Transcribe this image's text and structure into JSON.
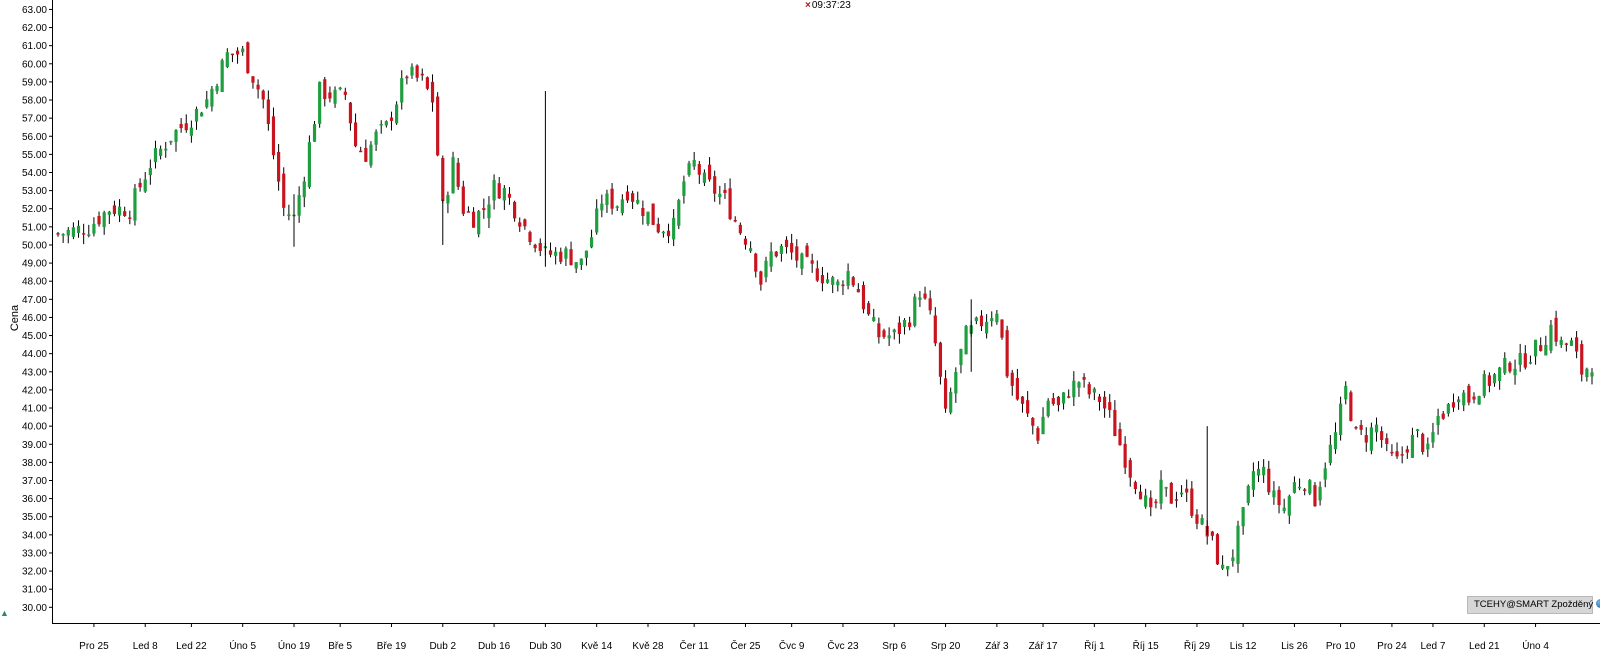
{
  "header": {
    "timestamp": "09:37:23",
    "timestamp_marker": "×"
  },
  "badge": {
    "label": "TCEHY@SMART Zpožděný"
  },
  "colors": {
    "up": "#1e9e3e",
    "down": "#c8141e",
    "wick": "#000000",
    "grid": "#e6e6e6",
    "axis": "#000000"
  },
  "chart_data": {
    "type": "candlestick",
    "ylabel": "Cena",
    "ylim": [
      29.3,
      63.3
    ],
    "y_ticks": [
      "30.00",
      "31.00",
      "32.00",
      "33.00",
      "34.00",
      "35.00",
      "36.00",
      "37.00",
      "38.00",
      "39.00",
      "40.00",
      "41.00",
      "42.00",
      "43.00",
      "44.00",
      "45.00",
      "46.00",
      "47.00",
      "48.00",
      "49.00",
      "50.00",
      "51.00",
      "52.00",
      "53.00",
      "54.00",
      "55.00",
      "56.00",
      "57.00",
      "58.00",
      "59.00",
      "60.00",
      "61.00",
      "62.00",
      "63.00"
    ],
    "x_ticks": [
      {
        "i": 7,
        "label": "Pro 25"
      },
      {
        "i": 17,
        "label": "Led 8"
      },
      {
        "i": 26,
        "label": "Led 22"
      },
      {
        "i": 36,
        "label": "Úno 5"
      },
      {
        "i": 46,
        "label": "Úno 19"
      },
      {
        "i": 55,
        "label": "Bře 5"
      },
      {
        "i": 65,
        "label": "Bře 19"
      },
      {
        "i": 75,
        "label": "Dub 2"
      },
      {
        "i": 85,
        "label": "Dub 16"
      },
      {
        "i": 95,
        "label": "Dub 30"
      },
      {
        "i": 105,
        "label": "Kvě 14"
      },
      {
        "i": 115,
        "label": "Kvě 28"
      },
      {
        "i": 124,
        "label": "Čer 11"
      },
      {
        "i": 134,
        "label": "Čer 25"
      },
      {
        "i": 143,
        "label": "Čvc 9"
      },
      {
        "i": 153,
        "label": "Čvc 23"
      },
      {
        "i": 163,
        "label": "Srp 6"
      },
      {
        "i": 173,
        "label": "Srp 20"
      },
      {
        "i": 183,
        "label": "Zář 3"
      },
      {
        "i": 192,
        "label": "Zář 17"
      },
      {
        "i": 202,
        "label": "Říj 1"
      },
      {
        "i": 212,
        "label": "Říj 15"
      },
      {
        "i": 222,
        "label": "Říj 29"
      },
      {
        "i": 231,
        "label": "Lis 12"
      },
      {
        "i": 241,
        "label": "Lis 26"
      },
      {
        "i": 250,
        "label": "Pro 10"
      },
      {
        "i": 260,
        "label": "Pro 24"
      },
      {
        "i": 268,
        "label": "Led 7"
      },
      {
        "i": 278,
        "label": "Led 21"
      },
      {
        "i": 288,
        "label": "Úno 4"
      }
    ],
    "anchors": [
      [
        0,
        50.6
      ],
      [
        6,
        51.0
      ],
      [
        10,
        52.0
      ],
      [
        14,
        52.0
      ],
      [
        18,
        54.5
      ],
      [
        22,
        56.0
      ],
      [
        26,
        57.0
      ],
      [
        29,
        58.0
      ],
      [
        33,
        60.5
      ],
      [
        36,
        60.6
      ],
      [
        40,
        58.0
      ],
      [
        42,
        55.0
      ],
      [
        44,
        52.0
      ],
      [
        46,
        51.5
      ],
      [
        48,
        54.0
      ],
      [
        51,
        58.5
      ],
      [
        54,
        58.2
      ],
      [
        56,
        58.3
      ],
      [
        58,
        55.5
      ],
      [
        60,
        55.0
      ],
      [
        62,
        56.0
      ],
      [
        64,
        56.5
      ],
      [
        66,
        58.0
      ],
      [
        68,
        59.5
      ],
      [
        71,
        59.0
      ],
      [
        73,
        58.0
      ],
      [
        75,
        52.0
      ],
      [
        77,
        54.5
      ],
      [
        79,
        52.0
      ],
      [
        81,
        51.5
      ],
      [
        83,
        52.0
      ],
      [
        85,
        53.2
      ],
      [
        87,
        53.0
      ],
      [
        89,
        52.0
      ],
      [
        91,
        51.0
      ],
      [
        95,
        49.5
      ],
      [
        99,
        49.5
      ],
      [
        102,
        49.0
      ],
      [
        104,
        50.5
      ],
      [
        106,
        52.5
      ],
      [
        109,
        52.3
      ],
      [
        111,
        53.0
      ],
      [
        114,
        52.0
      ],
      [
        117,
        51.0
      ],
      [
        120,
        51.0
      ],
      [
        122,
        53.5
      ],
      [
        124,
        54.5
      ],
      [
        126,
        53.5
      ],
      [
        130,
        52.5
      ],
      [
        133,
        50.8
      ],
      [
        135,
        50.0
      ],
      [
        137,
        48.0
      ],
      [
        139,
        49.5
      ],
      [
        141,
        49.8
      ],
      [
        143,
        49.5
      ],
      [
        145,
        49.0
      ],
      [
        149,
        48.3
      ],
      [
        152,
        47.8
      ],
      [
        154,
        48.5
      ],
      [
        156,
        47.5
      ],
      [
        158,
        46.0
      ],
      [
        160,
        45.0
      ],
      [
        163,
        45.0
      ],
      [
        166,
        46.0
      ],
      [
        168,
        47.5
      ],
      [
        170,
        46.0
      ],
      [
        171,
        44.5
      ],
      [
        173,
        40.5
      ],
      [
        175,
        43.0
      ],
      [
        177,
        45.0
      ],
      [
        179,
        45.5
      ],
      [
        181,
        46.0
      ],
      [
        183,
        46.5
      ],
      [
        185,
        43.0
      ],
      [
        187,
        41.5
      ],
      [
        189,
        40.5
      ],
      [
        191,
        39.5
      ],
      [
        193,
        41.5
      ],
      [
        195,
        41.0
      ],
      [
        197,
        42.0
      ],
      [
        199,
        42.5
      ],
      [
        201,
        41.8
      ],
      [
        203,
        41.5
      ],
      [
        205,
        40.5
      ],
      [
        207,
        39.0
      ],
      [
        209,
        37.5
      ],
      [
        211,
        36.5
      ],
      [
        213,
        35.0
      ],
      [
        215,
        36.5
      ],
      [
        217,
        36.0
      ],
      [
        219,
        36.5
      ],
      [
        221,
        35.5
      ],
      [
        223,
        34.5
      ],
      [
        225,
        33.5
      ],
      [
        227,
        32.0
      ],
      [
        229,
        33.0
      ],
      [
        231,
        35.0
      ],
      [
        233,
        37.5
      ],
      [
        235,
        37.5
      ],
      [
        237,
        36.0
      ],
      [
        239,
        35.5
      ],
      [
        241,
        36.8
      ],
      [
        243,
        37.0
      ],
      [
        245,
        36.0
      ],
      [
        247,
        38.0
      ],
      [
        249,
        39.5
      ],
      [
        251,
        42.0
      ],
      [
        253,
        39.5
      ],
      [
        255,
        39.5
      ],
      [
        257,
        40.0
      ],
      [
        259,
        38.5
      ],
      [
        261,
        38.0
      ],
      [
        263,
        39.0
      ],
      [
        265,
        39.5
      ],
      [
        267,
        38.5
      ],
      [
        269,
        40.5
      ],
      [
        271,
        41.0
      ],
      [
        273,
        42.0
      ],
      [
        275,
        41.5
      ],
      [
        277,
        42.2
      ],
      [
        279,
        42.5
      ],
      [
        281,
        43.0
      ],
      [
        283,
        43.5
      ],
      [
        285,
        43.5
      ],
      [
        287,
        44.0
      ],
      [
        289,
        44.5
      ],
      [
        291,
        45.5
      ],
      [
        293,
        44.5
      ],
      [
        295,
        44.5
      ],
      [
        297,
        43.0
      ],
      [
        299,
        43.5
      ]
    ]
  }
}
